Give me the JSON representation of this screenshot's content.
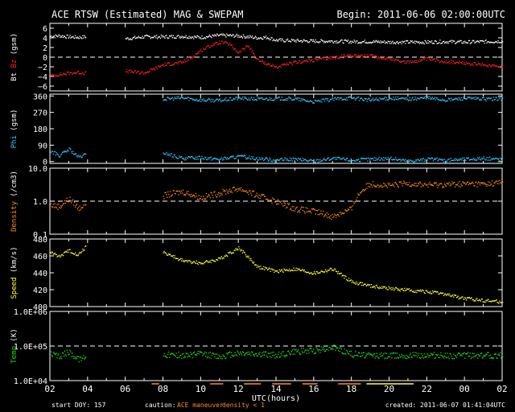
{
  "header": {
    "title": "ACE RTSW (Estimated) MAG & SWEPAM",
    "begin": "Begin: 2011-06-06 02:00:00UTC"
  },
  "footer": {
    "start_doy": "start DOY: 157",
    "caution_label": "caution:",
    "caution_maneuver": "ACE maneuver",
    "caution_density": "density < 1",
    "created": "created: 2011-06-07 01:41:04UTC"
  },
  "colors": {
    "bt": "#ffffff",
    "bz": "#ff2020",
    "phi": "#33c8ff",
    "density": "#ff8c1a",
    "speed": "#ffff33",
    "temp": "#22dd22",
    "axis": "#ffffff",
    "maneuver": "#ff8c1a",
    "density_low": "#ffff33"
  },
  "chart_data": {
    "type": "line",
    "x_unit": "UTC hours from 2011-06-06 02:00",
    "xlabel": "UTC(hours)",
    "x_tick_labels": [
      "02",
      "04",
      "06",
      "08",
      "10",
      "12",
      "14",
      "16",
      "18",
      "20",
      "22",
      "00",
      "02"
    ],
    "panels": [
      {
        "key": "mag",
        "ylabel_parts": [
          "Bt",
          "Bz",
          "(gsm)"
        ],
        "ylim": [
          -7,
          7
        ],
        "scale": "linear",
        "ticks": [
          6,
          4,
          2,
          0,
          -2,
          -4,
          -6
        ],
        "tick_labels": [
          "6",
          "4",
          "2",
          "0",
          "−2",
          "−4",
          "−6"
        ],
        "dash_at": 0,
        "series": [
          {
            "name": "Bt",
            "color_key": "bt",
            "x": [
              0,
              0.5,
              1,
              1.5,
              1.9,
              4,
              5,
              6,
              7,
              8,
              9,
              10,
              11,
              11.5,
              12,
              13,
              14,
              15,
              16,
              17,
              18,
              19,
              20,
              21,
              22,
              23,
              24
            ],
            "y": [
              4.4,
              4.5,
              4.3,
              4.2,
              4.3,
              3.9,
              4.3,
              4.3,
              4.4,
              4.2,
              4.6,
              4.5,
              4.1,
              4.2,
              3.6,
              3.5,
              3.4,
              3.4,
              3.3,
              3.3,
              3.2,
              3.2,
              3.2,
              3.3,
              3.2,
              3.3,
              3.4
            ]
          },
          {
            "name": "Bz",
            "color_key": "bz",
            "x": [
              0,
              0.5,
              1,
              1.5,
              1.9,
              4,
              4.5,
              5,
              6,
              7,
              7.5,
              8,
              8.5,
              9,
              9.5,
              10,
              10.5,
              11,
              12,
              12.5,
              13,
              14,
              15,
              16,
              17,
              18,
              19,
              20,
              21,
              22,
              23,
              24
            ],
            "y": [
              -3.8,
              -3.5,
              -3.2,
              -3.1,
              -3.2,
              -2.8,
              -3,
              -3.2,
              -1.5,
              -1,
              0,
              1.5,
              2.5,
              3.2,
              2.8,
              1,
              2.5,
              -0.5,
              -2,
              -1.5,
              -1,
              -0.5,
              0,
              0.5,
              0.3,
              -0.2,
              -1,
              -0.3,
              -0.8,
              -1.2,
              -1.5,
              -1.8
            ]
          }
        ]
      },
      {
        "key": "phi",
        "ylabel_parts": [
          "Phi",
          "(gsm)"
        ],
        "ylim": [
          -10,
          370
        ],
        "scale": "linear",
        "ticks": [
          360,
          270,
          180,
          90,
          0
        ],
        "tick_labels": [
          "360",
          "270",
          "180",
          "90",
          "0"
        ],
        "dash_at": null,
        "series": [
          {
            "name": "Phi",
            "color_key": "phi",
            "x": [
              0,
              0.5,
              1,
              1.5,
              1.9,
              6,
              7,
              8,
              9,
              10,
              11,
              12,
              13,
              14,
              15,
              16,
              17,
              18,
              19,
              20,
              21,
              22,
              23,
              24
            ],
            "y": [
              60,
              35,
              70,
              25,
              40,
              50,
              20,
              25,
              15,
              30,
              20,
              10,
              15,
              5,
              20,
              10,
              15,
              20,
              5,
              15,
              10,
              15,
              20,
              15
            ]
          },
          {
            "name": "Phi upper",
            "color_key": "phi",
            "x": [
              6,
              7,
              8,
              9,
              10,
              11,
              12,
              13,
              14,
              15,
              16,
              17,
              18,
              19,
              20,
              21,
              22,
              23,
              24
            ],
            "y": [
              345,
              352,
              340,
              338,
              350,
              345,
              348,
              346,
              330,
              345,
              352,
              340,
              350,
              345,
              352,
              340,
              350,
              345,
              348
            ]
          }
        ]
      },
      {
        "key": "density",
        "ylabel_parts": [
          "Density",
          "(/cm3)"
        ],
        "ylim": [
          0.1,
          10
        ],
        "scale": "log",
        "ticks": [
          10,
          1,
          0.1
        ],
        "tick_labels": [
          "10.0",
          "1.0",
          "0.1"
        ],
        "dash_at": 1,
        "series": [
          {
            "name": "Density",
            "color_key": "density",
            "x": [
              0,
              0.5,
              1,
              1.5,
              1.9,
              6,
              7,
              8,
              9,
              10,
              11,
              12,
              13,
              14,
              15,
              16,
              17,
              18,
              19,
              20,
              21,
              22,
              23,
              24
            ],
            "y": [
              0.8,
              0.7,
              1.2,
              0.6,
              0.9,
              1.5,
              2,
              1.3,
              1.8,
              2.5,
              1.5,
              1,
              0.6,
              0.5,
              0.35,
              0.6,
              3.5,
              3,
              3.6,
              3.2,
              3.3,
              3.5,
              3.4,
              3.8
            ]
          }
        ]
      },
      {
        "key": "speed",
        "ylabel_parts": [
          "Speed",
          "(km/s)"
        ],
        "ylim": [
          400,
          480
        ],
        "scale": "linear",
        "ticks": [
          480,
          460,
          440,
          420,
          400
        ],
        "tick_labels": [
          "480",
          "460",
          "440",
          "420",
          "400"
        ],
        "dash_at": null,
        "series": [
          {
            "name": "Speed",
            "color_key": "speed",
            "x": [
              0,
              0.5,
              1,
              1.5,
              1.9,
              6,
              7,
              8,
              9,
              10,
              11,
              12,
              13,
              14,
              15,
              16,
              17,
              18,
              19,
              20,
              21,
              22,
              23,
              24
            ],
            "y": [
              465,
              460,
              467,
              462,
              472,
              465,
              455,
              452,
              457,
              470,
              448,
              442,
              445,
              440,
              445,
              430,
              425,
              422,
              420,
              418,
              415,
              410,
              408,
              406
            ]
          }
        ]
      },
      {
        "key": "temp",
        "ylabel_parts": [
          "Temp",
          "(K)"
        ],
        "ylim": [
          10000,
          1000000
        ],
        "scale": "log",
        "ticks": [
          1000000,
          100000,
          10000
        ],
        "tick_labels": [
          "1.0E+06",
          "1.0E+05",
          "1.0E+04"
        ],
        "dash_at": 100000,
        "series": [
          {
            "name": "Temp",
            "color_key": "temp",
            "x": [
              0,
              0.5,
              1,
              1.5,
              1.9,
              6,
              7,
              8,
              9,
              10,
              11,
              12,
              13,
              14,
              15,
              16,
              17,
              18,
              19,
              20,
              21,
              22,
              23,
              24
            ],
            "y": [
              60000,
              50000,
              70000,
              40000,
              55000,
              60000,
              55000,
              60000,
              50000,
              65000,
              60000,
              55000,
              70000,
              75000,
              95000,
              60000,
              55000,
              55000,
              55000,
              55000,
              55000,
              55000,
              55000,
              55000
            ]
          }
        ]
      }
    ],
    "maneuver_segments": [
      [
        5.4,
        5.8
      ],
      [
        8.5,
        9.2
      ],
      [
        10.3,
        11.2
      ],
      [
        11.8,
        12.8
      ],
      [
        13.4,
        14.2
      ],
      [
        15.3,
        16.5
      ]
    ],
    "density_low_segments": [
      [
        16.8,
        19.3
      ]
    ]
  }
}
